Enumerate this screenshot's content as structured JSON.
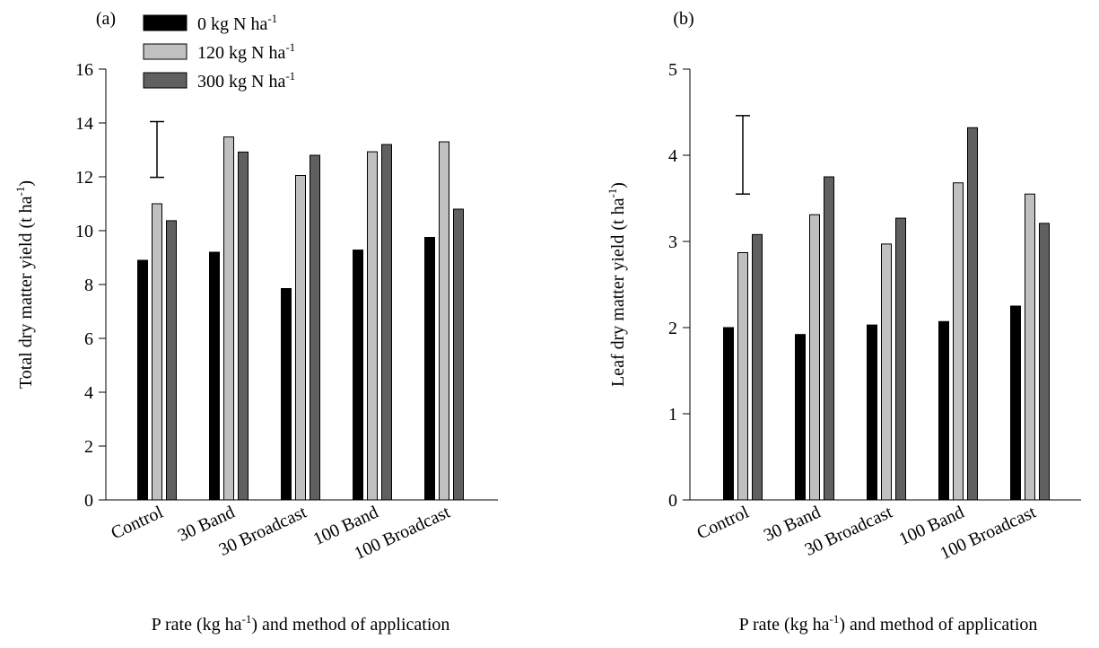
{
  "legend": {
    "items": [
      {
        "text": "0 kg N ha",
        "sup": "-1",
        "color": "#000000"
      },
      {
        "text": "120 kg N ha",
        "sup": "-1",
        "color": "#c0c0c0"
      },
      {
        "text": "300 kg N ha",
        "sup": "-1",
        "color": "#606060"
      }
    ]
  },
  "chart_data": [
    {
      "type": "bar",
      "panel_tag": "(a)",
      "categories": [
        "Control",
        "30 Band",
        "30 Broadcast",
        "100 Band",
        "100 Broadcast"
      ],
      "series": [
        {
          "name": "0 kg N ha-1",
          "color": "#000000",
          "values": [
            8.9,
            9.2,
            7.85,
            9.28,
            9.75
          ]
        },
        {
          "name": "120 kg N ha-1",
          "color": "#c0c0c0",
          "values": [
            11.0,
            13.48,
            12.05,
            12.93,
            13.3
          ]
        },
        {
          "name": "300 kg N ha-1",
          "color": "#606060",
          "values": [
            10.37,
            12.92,
            12.8,
            13.2,
            10.8
          ]
        }
      ],
      "error_bar": {
        "category": "Control",
        "low": 11.98,
        "high": 14.05
      },
      "ylim": [
        0,
        16
      ],
      "yticks": [
        0,
        2,
        4,
        6,
        8,
        10,
        12,
        14,
        16
      ],
      "ylabel": {
        "text": "Total dry matter yield (t ha",
        "sup": "-1",
        "tail": ")"
      },
      "xlabel": {
        "text": "P rate (kg ha",
        "sup": "-1",
        "tail": ") and method of application"
      },
      "grid": false
    },
    {
      "type": "bar",
      "panel_tag": "(b)",
      "categories": [
        "Control",
        "30 Band",
        "30 Broadcast",
        "100 Band",
        "100 Broadcast"
      ],
      "series": [
        {
          "name": "0 kg N ha-1",
          "color": "#000000",
          "values": [
            2.0,
            1.92,
            2.03,
            2.07,
            2.25
          ]
        },
        {
          "name": "120 kg N ha-1",
          "color": "#c0c0c0",
          "values": [
            2.87,
            3.31,
            2.97,
            3.68,
            3.55
          ]
        },
        {
          "name": "300 kg N ha-1",
          "color": "#606060",
          "values": [
            3.08,
            3.75,
            3.27,
            4.32,
            3.21
          ]
        }
      ],
      "error_bar": {
        "category": "Control",
        "low": 3.55,
        "high": 4.46
      },
      "ylim": [
        0,
        5
      ],
      "yticks": [
        0,
        1,
        2,
        3,
        4,
        5
      ],
      "ylabel": {
        "text": "Leaf dry matter yield (t ha",
        "sup": "-1",
        "tail": ")"
      },
      "xlabel": {
        "text": "P rate (kg ha",
        "sup": "-1",
        "tail": ") and method of application"
      },
      "grid": false
    }
  ]
}
